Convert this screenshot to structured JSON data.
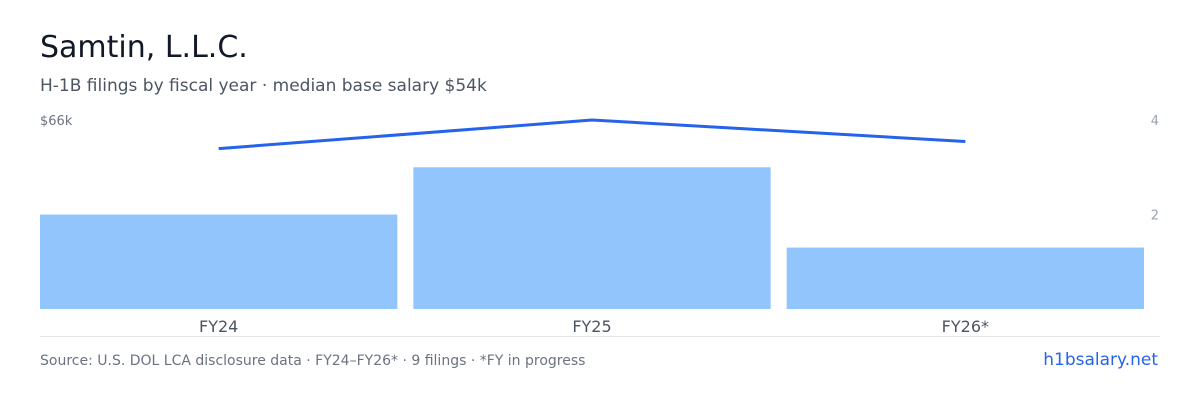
{
  "header": {
    "title": "Samtin, L.L.C.",
    "subtitle": "H-1B filings by fiscal year · median base salary $54k"
  },
  "chart_data": {
    "type": "bar",
    "categories": [
      "FY24",
      "FY25",
      "FY26*"
    ],
    "series": [
      {
        "kind": "bar",
        "axis": "right",
        "values": [
          2,
          3,
          1.3
        ],
        "color": "#93c5fd"
      },
      {
        "kind": "line",
        "axis": "left",
        "values": [
          56,
          66,
          58.5
        ],
        "color": "#2563eb"
      }
    ],
    "left_axis": {
      "tick_labels": [
        "$66k"
      ],
      "ylim": [
        0,
        66
      ]
    },
    "right_axis": {
      "tick_labels": [
        "4",
        "2"
      ],
      "ticks": [
        4,
        2
      ],
      "ylim": [
        0,
        4
      ]
    },
    "grid": false
  },
  "footer": {
    "source": "Source: U.S. DOL LCA disclosure data · FY24–FY26* · 9 filings · *FY in progress",
    "link": "h1bsalary.net"
  }
}
